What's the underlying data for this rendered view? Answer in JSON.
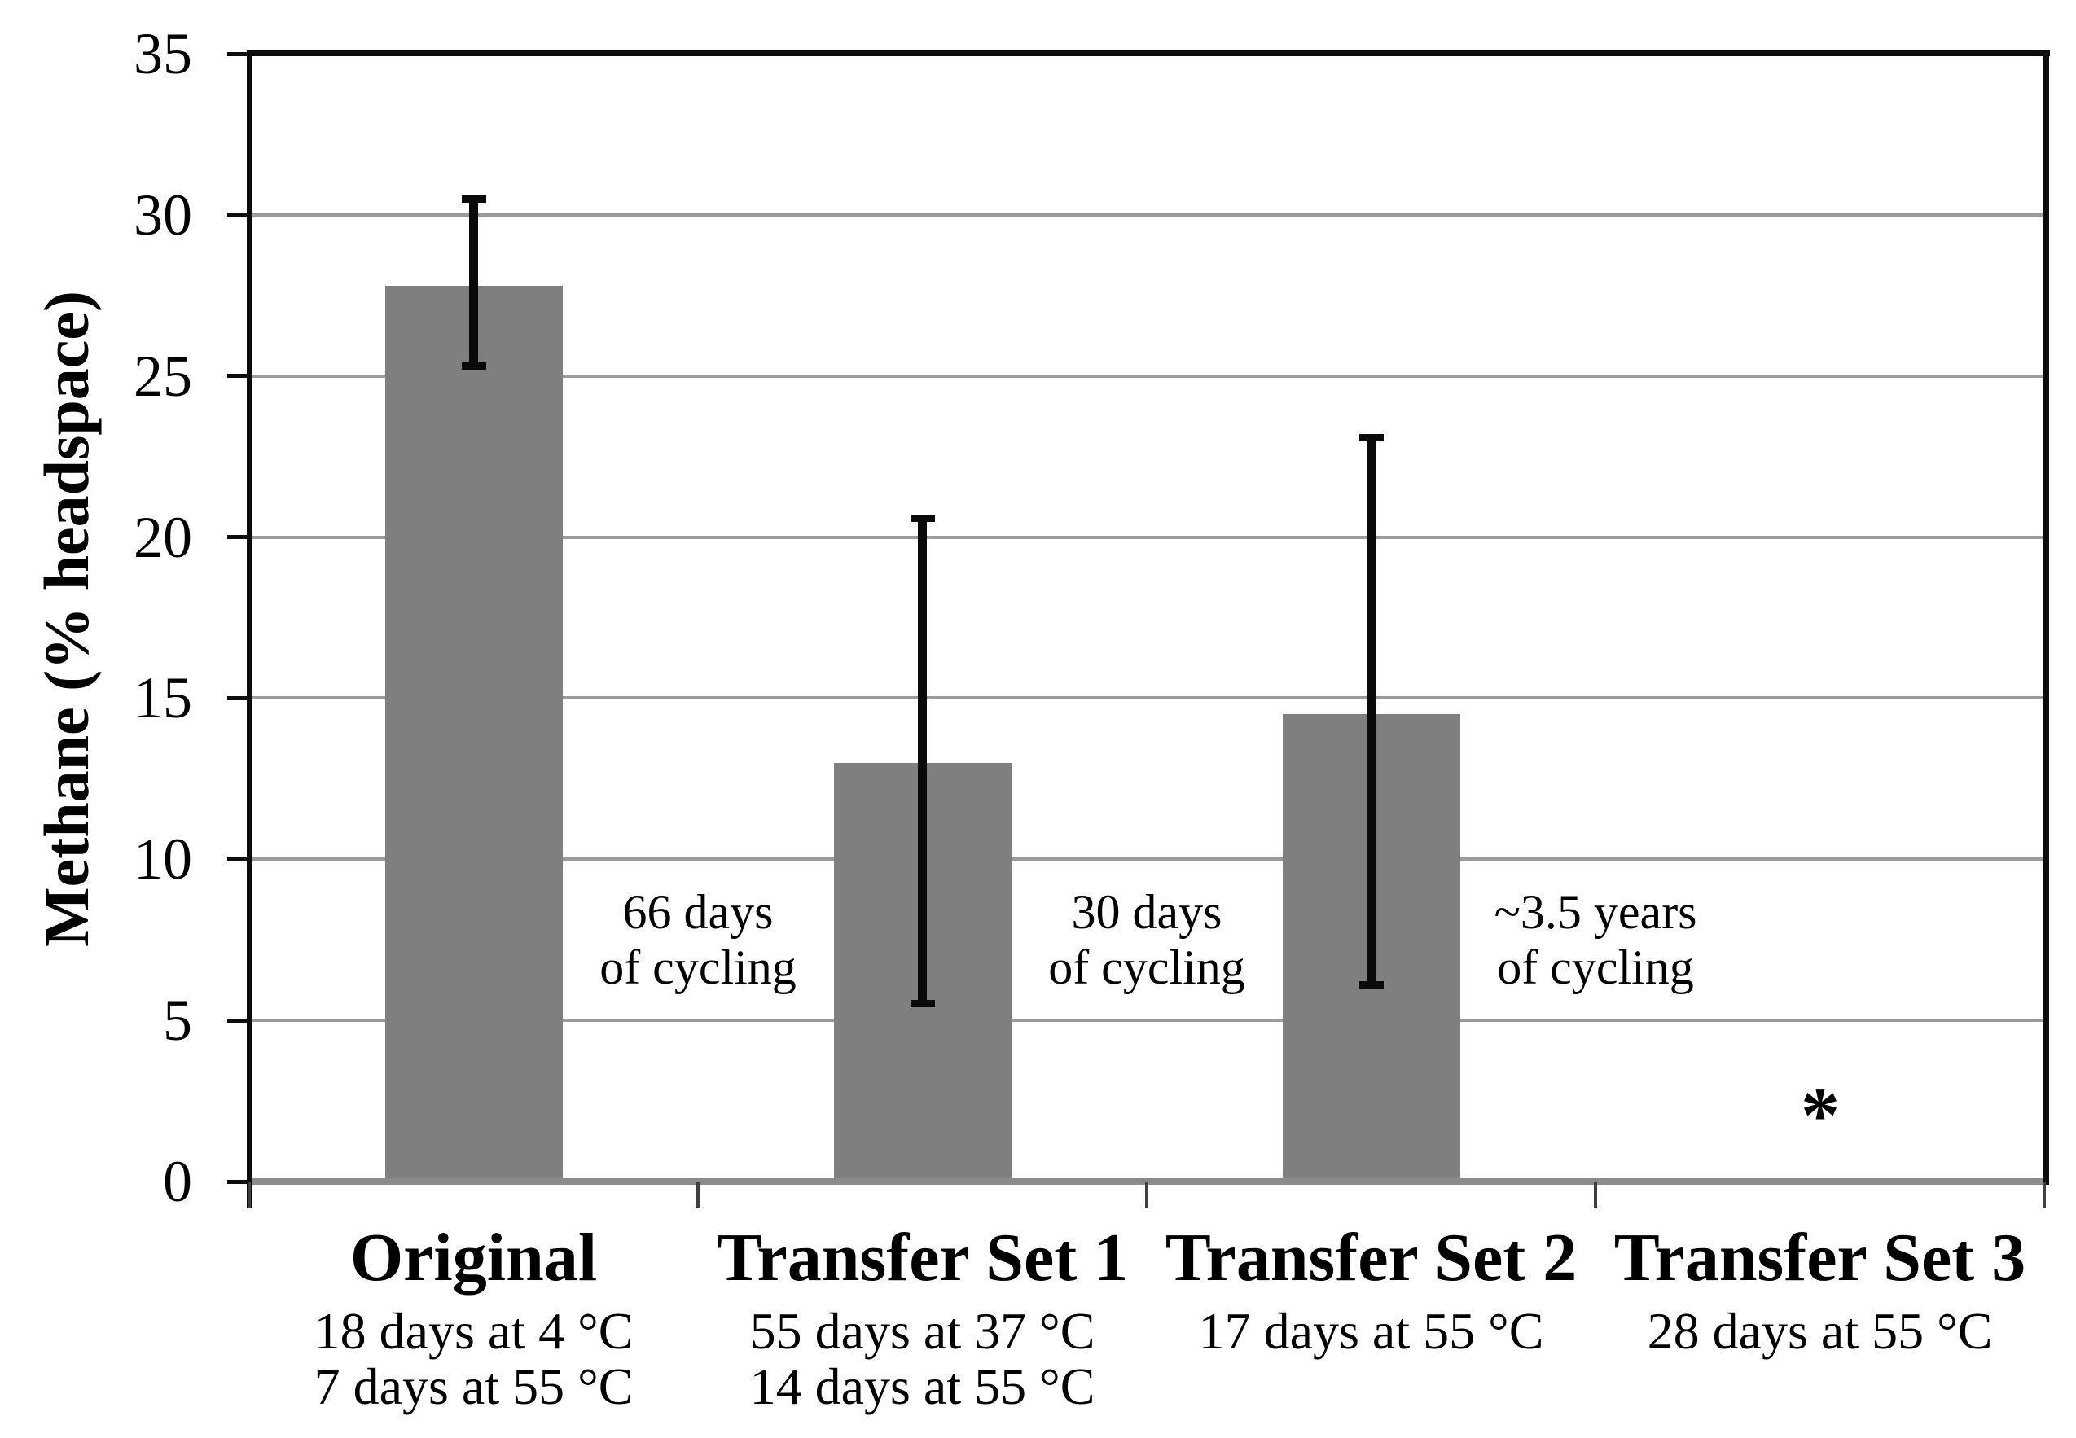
{
  "chart_data": {
    "type": "bar",
    "title": "",
    "ylabel": "Methane (% headspace)",
    "xlabel": "",
    "ylim": [
      0,
      35
    ],
    "yticks": [
      0,
      5,
      10,
      15,
      20,
      25,
      30,
      35
    ],
    "grid": "horizontal",
    "legend": "none",
    "bar_color": "#7f7f7f",
    "gridline_color": "#9b9b9b",
    "axis_color": "#0d0d0d",
    "baseline_color": "#8c8c8c",
    "categories": [
      {
        "label": "Original",
        "conditions": [
          "18 days at 4 °C",
          "7 days at 55 °C"
        ],
        "value": 27.8,
        "error_high": 30.5,
        "error_low": 25.3
      },
      {
        "label": "Transfer Set 1",
        "conditions": [
          "55 days at 37 °C",
          "14 days at 55 °C"
        ],
        "value": 13.0,
        "error_high": 20.6,
        "error_low": 5.5
      },
      {
        "label": "Transfer Set 2",
        "conditions": [
          "17 days at 55 °C"
        ],
        "value": 14.5,
        "error_high": 23.1,
        "error_low": 6.1
      },
      {
        "label": "Transfer Set 3",
        "conditions": [
          "28 days at 55 °C"
        ],
        "value": null,
        "marker": "*",
        "marker_y_value": 2.2
      }
    ],
    "annotations": [
      {
        "lines": [
          "66 days",
          "of cycling"
        ],
        "between": [
          0,
          1
        ]
      },
      {
        "lines": [
          "30 days",
          "of cycling"
        ],
        "between": [
          1,
          2
        ]
      },
      {
        "lines": [
          "~3.5 years",
          "of cycling"
        ],
        "between": [
          2,
          3
        ]
      }
    ]
  }
}
